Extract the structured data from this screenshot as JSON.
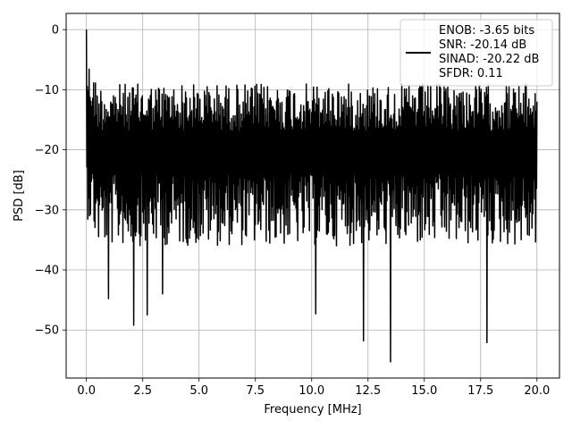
{
  "chart_data": {
    "type": "line",
    "xlabel": "Frequency [MHz]",
    "ylabel": "PSD [dB]",
    "xlim": [
      -0.9,
      21.0
    ],
    "ylim": [
      -58,
      2.7
    ],
    "grid": true,
    "xticks": [
      0.0,
      2.5,
      5.0,
      7.5,
      10.0,
      12.5,
      15.0,
      17.5,
      20.0
    ],
    "xtick_labels": [
      "0.0",
      "2.5",
      "5.0",
      "7.5",
      "10.0",
      "12.5",
      "15.0",
      "17.5",
      "20.0"
    ],
    "yticks": [
      0,
      -10,
      -20,
      -30,
      -40,
      -50
    ],
    "ytick_labels": [
      "0",
      "−10",
      "−20",
      "−30",
      "−40",
      "−50"
    ],
    "legend": {
      "placement": "top-right",
      "lines": [
        "ENOB: -3.65 bits",
        "SNR: -20.14 dB",
        "SINAD: -20.22 dB",
        "SFDR: 0.11"
      ]
    },
    "series": [
      {
        "color": "#000000",
        "x_range": [
          0.0,
          20.0
        ],
        "envelope_samples": 1000,
        "approx_median_dB": -21,
        "peak": {
          "x": 0.0,
          "y": 0.0
        },
        "notable_minima": [
          {
            "x": 1.0,
            "y": -44.8
          },
          {
            "x": 2.1,
            "y": -49.2
          },
          {
            "x": 2.7,
            "y": -47.5
          },
          {
            "x": 3.4,
            "y": -44.0
          },
          {
            "x": 10.2,
            "y": -47.3
          },
          {
            "x": 12.3,
            "y": -51.8
          },
          {
            "x": 13.5,
            "y": -55.3
          },
          {
            "x": 17.8,
            "y": -52.1
          }
        ]
      }
    ]
  }
}
